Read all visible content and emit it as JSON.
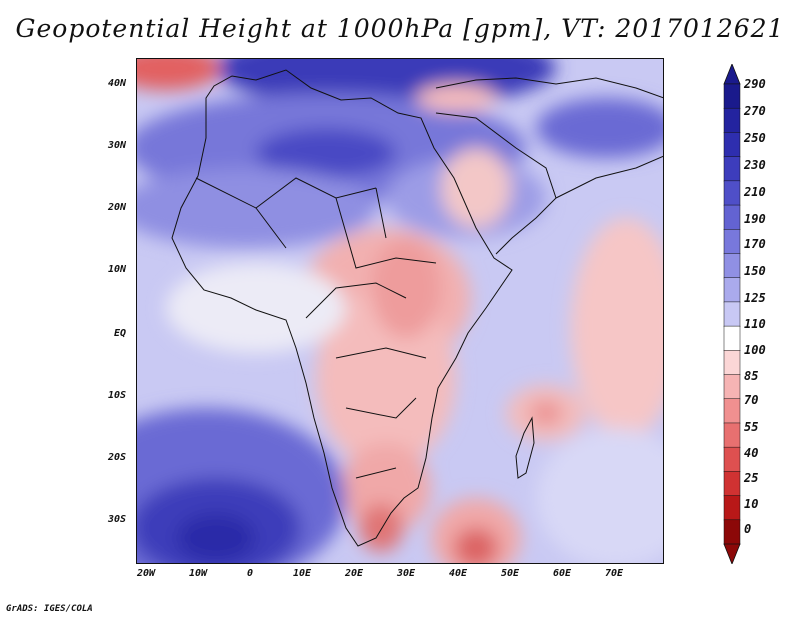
{
  "title": "Geopotential Height at 1000hPa [gpm], VT: 2017012621",
  "credit": "GrADS: IGES/COLA",
  "map": {
    "lat_labels": [
      "40N",
      "30N",
      "20N",
      "10N",
      "EQ",
      "10S",
      "20S",
      "30S"
    ],
    "lon_labels": [
      "20W",
      "10W",
      "0",
      "10E",
      "20E",
      "30E",
      "40E",
      "50E",
      "60E",
      "70E"
    ]
  },
  "colorbar": {
    "labels": [
      "290",
      "270",
      "250",
      "230",
      "210",
      "190",
      "170",
      "150",
      "125",
      "110",
      "100",
      "85",
      "70",
      "55",
      "40",
      "25",
      "10",
      "0"
    ],
    "colors": [
      "#1a1a8c",
      "#23239f",
      "#2e2eaf",
      "#3d3dbc",
      "#4f4fc8",
      "#6363d2",
      "#7878dc",
      "#9090e4",
      "#aaaaec",
      "#c8c8f4",
      "#ffffff",
      "#fbd6d6",
      "#f6b4b4",
      "#f09090",
      "#e87070",
      "#de5050",
      "#d03232",
      "#b81818",
      "#8c0808"
    ]
  }
}
